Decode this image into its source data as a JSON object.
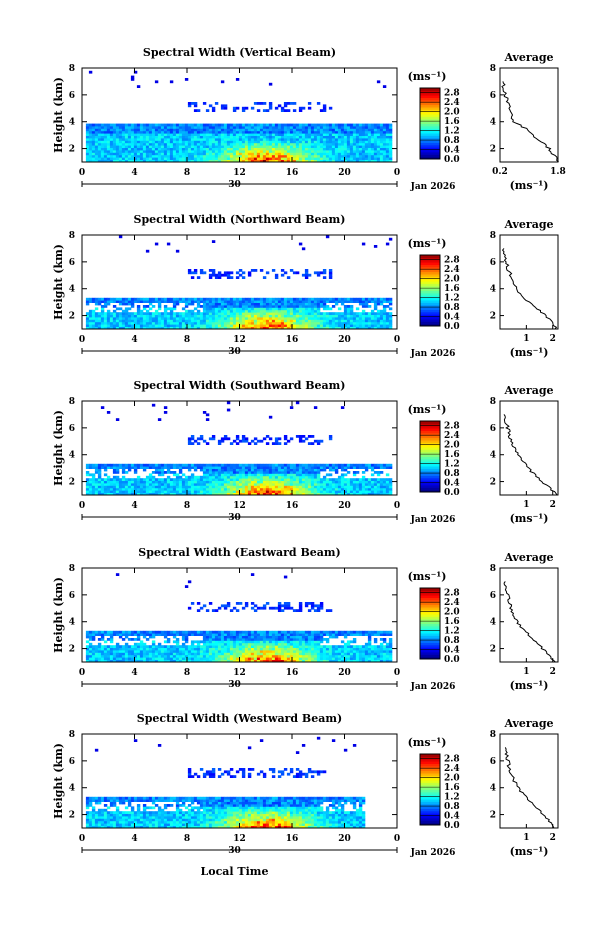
{
  "chart_data": [
    {
      "type": "heatmap",
      "title": "Spectral Width (Vertical Beam)",
      "ylabel": "Height (km)",
      "x_ticks": [
        "0",
        "4",
        "8",
        "12",
        "16",
        "20",
        "0"
      ],
      "y_ticks": [
        "2",
        "4",
        "6",
        "8"
      ],
      "ylim": [
        1,
        8
      ],
      "xlim": [
        0,
        24
      ],
      "date_label": "Jan 2026",
      "date_day": "30",
      "colorbar": {
        "unit": "(ms⁻¹)",
        "ticks": [
          "0.0",
          "0.4",
          "0.8",
          "1.2",
          "1.6",
          "2.0",
          "2.4",
          "2.8"
        ],
        "range": [
          0,
          3.0
        ]
      },
      "average": {
        "title": "Average",
        "xlabel": "(ms⁻¹)",
        "x_ticks": [
          "0.2",
          "1.8"
        ],
        "xlim": [
          0.2,
          1.8
        ],
        "y_ticks": [
          "2",
          "4",
          "6",
          "8"
        ],
        "profile": [
          [
            1.82,
            1.0
          ],
          [
            1.7,
            1.5
          ],
          [
            1.55,
            2.0
          ],
          [
            1.35,
            2.5
          ],
          [
            1.1,
            3.0
          ],
          [
            0.9,
            3.5
          ],
          [
            0.6,
            4.0
          ],
          [
            0.5,
            4.5
          ],
          [
            0.45,
            5.0
          ],
          [
            0.4,
            5.5
          ],
          [
            0.35,
            6.0
          ],
          [
            0.3,
            6.5
          ],
          [
            0.28,
            7.0
          ]
        ]
      }
    },
    {
      "type": "heatmap",
      "title": "Spectral Width (Northward Beam)",
      "ylabel": "Height (km)",
      "x_ticks": [
        "0",
        "4",
        "8",
        "12",
        "16",
        "20",
        "0"
      ],
      "y_ticks": [
        "2",
        "4",
        "6",
        "8"
      ],
      "ylim": [
        1,
        8
      ],
      "xlim": [
        0,
        24
      ],
      "date_label": "Jan 2026",
      "date_day": "30",
      "colorbar": {
        "unit": "(ms⁻¹)",
        "ticks": [
          "0.0",
          "0.4",
          "0.8",
          "1.2",
          "1.6",
          "2.0",
          "2.4",
          "2.8"
        ],
        "range": [
          0,
          3.0
        ]
      },
      "average": {
        "title": "Average",
        "xlabel": "(ms⁻¹)",
        "x_ticks": [
          "1",
          "2"
        ],
        "xlim": [
          0,
          2.2
        ],
        "y_ticks": [
          "2",
          "4",
          "6",
          "8"
        ],
        "profile": [
          [
            2.15,
            1.0
          ],
          [
            2.0,
            1.5
          ],
          [
            1.75,
            2.0
          ],
          [
            1.4,
            2.5
          ],
          [
            1.1,
            3.0
          ],
          [
            0.85,
            3.5
          ],
          [
            0.6,
            4.0
          ],
          [
            0.5,
            4.5
          ],
          [
            0.4,
            5.0
          ],
          [
            0.3,
            5.5
          ],
          [
            0.25,
            6.0
          ],
          [
            0.2,
            6.5
          ],
          [
            0.15,
            7.0
          ]
        ]
      }
    },
    {
      "type": "heatmap",
      "title": "Spectral Width (Southward Beam)",
      "ylabel": "Height (km)",
      "x_ticks": [
        "0",
        "4",
        "8",
        "12",
        "16",
        "20",
        "0"
      ],
      "y_ticks": [
        "2",
        "4",
        "6",
        "8"
      ],
      "ylim": [
        1,
        8
      ],
      "xlim": [
        0,
        24
      ],
      "date_label": "Jan 2026",
      "date_day": "30",
      "colorbar": {
        "unit": "(ms⁻¹)",
        "ticks": [
          "0.0",
          "0.4",
          "0.8",
          "1.2",
          "1.6",
          "2.0",
          "2.4",
          "2.8"
        ],
        "range": [
          0,
          3.0
        ]
      },
      "average": {
        "title": "Average",
        "xlabel": "(ms⁻¹)",
        "x_ticks": [
          "1",
          "2"
        ],
        "xlim": [
          0,
          2.2
        ],
        "y_ticks": [
          "2",
          "4",
          "6",
          "8"
        ],
        "profile": [
          [
            2.15,
            1.0
          ],
          [
            1.9,
            1.5
          ],
          [
            1.6,
            2.0
          ],
          [
            1.3,
            2.5
          ],
          [
            1.1,
            3.0
          ],
          [
            0.9,
            3.5
          ],
          [
            0.7,
            4.0
          ],
          [
            0.55,
            4.5
          ],
          [
            0.45,
            5.0
          ],
          [
            0.35,
            5.5
          ],
          [
            0.3,
            6.0
          ],
          [
            0.2,
            6.5
          ],
          [
            0.15,
            7.0
          ]
        ]
      }
    },
    {
      "type": "heatmap",
      "title": "Spectral Width (Eastward Beam)",
      "ylabel": "Height (km)",
      "x_ticks": [
        "0",
        "4",
        "8",
        "12",
        "16",
        "20",
        "0"
      ],
      "y_ticks": [
        "2",
        "4",
        "6",
        "8"
      ],
      "ylim": [
        1,
        8
      ],
      "xlim": [
        0,
        24
      ],
      "date_label": "Jan 2026",
      "date_day": "30",
      "colorbar": {
        "unit": "(ms⁻¹)",
        "ticks": [
          "0.0",
          "0.4",
          "0.8",
          "1.2",
          "1.6",
          "2.0",
          "2.4",
          "2.8"
        ],
        "range": [
          0,
          3.0
        ]
      },
      "average": {
        "title": "Average",
        "xlabel": "(ms⁻¹)",
        "x_ticks": [
          "1",
          "2"
        ],
        "xlim": [
          0,
          2.2
        ],
        "y_ticks": [
          "2",
          "4",
          "6",
          "8"
        ],
        "profile": [
          [
            2.1,
            1.0
          ],
          [
            1.85,
            1.5
          ],
          [
            1.6,
            2.0
          ],
          [
            1.35,
            2.5
          ],
          [
            1.1,
            3.0
          ],
          [
            0.85,
            3.5
          ],
          [
            0.65,
            4.0
          ],
          [
            0.5,
            4.5
          ],
          [
            0.4,
            5.0
          ],
          [
            0.35,
            5.5
          ],
          [
            0.3,
            6.0
          ],
          [
            0.25,
            6.5
          ],
          [
            0.2,
            7.0
          ]
        ]
      }
    },
    {
      "type": "heatmap",
      "title": "Spectral Width (Westward Beam)",
      "ylabel": "Height (km)",
      "xlabel": "Local Time",
      "x_ticks": [
        "0",
        "4",
        "8",
        "12",
        "16",
        "20",
        "0"
      ],
      "y_ticks": [
        "2",
        "4",
        "6",
        "8"
      ],
      "ylim": [
        1,
        8
      ],
      "xlim": [
        0,
        24
      ],
      "date_label": "Jan 2026",
      "date_day": "30",
      "colorbar": {
        "unit": "(ms⁻¹)",
        "ticks": [
          "0.0",
          "0.4",
          "0.8",
          "1.2",
          "1.6",
          "2.0",
          "2.4",
          "2.8"
        ],
        "range": [
          0,
          3.0
        ]
      },
      "average": {
        "title": "Average",
        "xlabel": "(ms⁻¹)",
        "x_ticks": [
          "1",
          "2"
        ],
        "xlim": [
          0,
          2.2
        ],
        "y_ticks": [
          "2",
          "4",
          "6",
          "8"
        ],
        "profile": [
          [
            2.1,
            1.0
          ],
          [
            1.9,
            1.5
          ],
          [
            1.65,
            2.0
          ],
          [
            1.4,
            2.5
          ],
          [
            1.15,
            3.0
          ],
          [
            0.9,
            3.5
          ],
          [
            0.7,
            4.0
          ],
          [
            0.55,
            4.5
          ],
          [
            0.45,
            5.0
          ],
          [
            0.35,
            5.5
          ],
          [
            0.3,
            6.0
          ],
          [
            0.25,
            6.5
          ],
          [
            0.2,
            7.0
          ]
        ]
      }
    }
  ]
}
